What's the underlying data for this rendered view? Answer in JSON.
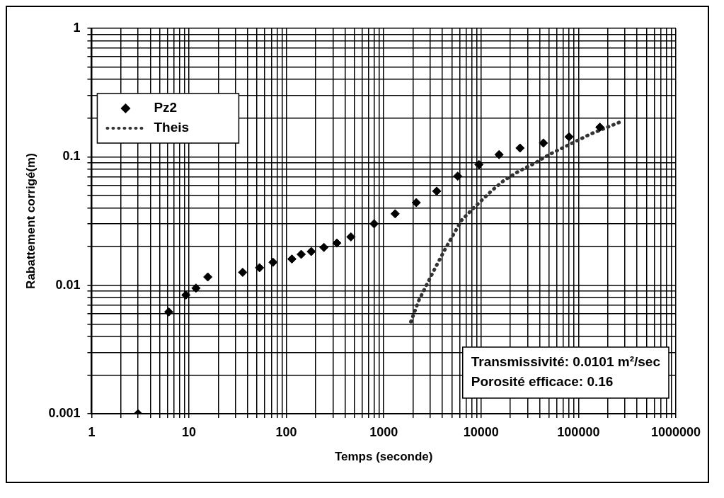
{
  "chart_data": {
    "type": "scatter",
    "xlabel": "Temps (seconde)",
    "ylabel": "Rabattement corrigé(m)",
    "log": "xy",
    "xlim": [
      1,
      1000000
    ],
    "ylim": [
      0.001,
      1
    ],
    "xticks": [
      1,
      {
        "value": 2,
        "label": null
      },
      {
        "value": 3,
        "label": null
      },
      {
        "value": 4,
        "label": null
      },
      {
        "value": 5,
        "label": null
      },
      {
        "value": 6,
        "label": null
      },
      {
        "value": 7,
        "label": null
      },
      {
        "value": 8,
        "label": null
      },
      {
        "value": 9,
        "label": null
      },
      10,
      {
        "value": 20,
        "label": null
      },
      {
        "value": 30,
        "label": null
      },
      {
        "value": 40,
        "label": null
      },
      {
        "value": 50,
        "label": null
      },
      {
        "value": 60,
        "label": null
      },
      {
        "value": 70,
        "label": null
      },
      {
        "value": 80,
        "label": null
      },
      {
        "value": 90,
        "label": null
      },
      100,
      {
        "value": 200,
        "label": null
      },
      {
        "value": 300,
        "label": null
      },
      {
        "value": 400,
        "label": null
      },
      {
        "value": 500,
        "label": null
      },
      {
        "value": 600,
        "label": null
      },
      {
        "value": 700,
        "label": null
      },
      {
        "value": 800,
        "label": null
      },
      {
        "value": 900,
        "label": null
      },
      1000,
      {
        "value": 2000,
        "label": null
      },
      {
        "value": 3000,
        "label": null
      },
      {
        "value": 4000,
        "label": null
      },
      {
        "value": 5000,
        "label": null
      },
      {
        "value": 6000,
        "label": null
      },
      {
        "value": 7000,
        "label": null
      },
      {
        "value": 8000,
        "label": null
      },
      {
        "value": 9000,
        "label": null
      },
      10000,
      {
        "value": 20000,
        "label": null
      },
      {
        "value": 30000,
        "label": null
      },
      {
        "value": 40000,
        "label": null
      },
      {
        "value": 50000,
        "label": null
      },
      {
        "value": 60000,
        "label": null
      },
      {
        "value": 70000,
        "label": null
      },
      {
        "value": 80000,
        "label": null
      },
      {
        "value": 90000,
        "label": null
      },
      100000,
      {
        "value": 200000,
        "label": null
      },
      {
        "value": 300000,
        "label": null
      },
      {
        "value": 400000,
        "label": null
      },
      {
        "value": 500000,
        "label": null
      },
      {
        "value": 600000,
        "label": null
      },
      {
        "value": 700000,
        "label": null
      },
      {
        "value": 800000,
        "label": null
      },
      {
        "value": 900000,
        "label": null
      },
      1000000
    ],
    "yticks": [
      0.001,
      {
        "value": 0.002,
        "label": null
      },
      {
        "value": 0.003,
        "label": null
      },
      {
        "value": 0.004,
        "label": null
      },
      {
        "value": 0.005,
        "label": null
      },
      {
        "value": 0.006,
        "label": null
      },
      {
        "value": 0.007,
        "label": null
      },
      {
        "value": 0.008,
        "label": null
      },
      {
        "value": 0.009,
        "label": null
      },
      0.01,
      {
        "value": 0.02,
        "label": null
      },
      {
        "value": 0.03,
        "label": null
      },
      {
        "value": 0.04,
        "label": null
      },
      {
        "value": 0.05,
        "label": null
      },
      {
        "value": 0.06,
        "label": null
      },
      {
        "value": 0.07,
        "label": null
      },
      {
        "value": 0.08,
        "label": null
      },
      {
        "value": 0.09,
        "label": null
      },
      0.1,
      {
        "value": 0.2,
        "label": null
      },
      {
        "value": 0.3,
        "label": null
      },
      {
        "value": 0.4,
        "label": null
      },
      {
        "value": 0.5,
        "label": null
      },
      {
        "value": 0.6,
        "label": null
      },
      {
        "value": 0.7,
        "label": null
      },
      {
        "value": 0.8,
        "label": null
      },
      {
        "value": 0.9,
        "label": null
      },
      1
    ],
    "grid": true,
    "legend": "top left",
    "series": [
      {
        "name": "Pz2",
        "marker": "diamond",
        "color": "#000000",
        "x": [
          3,
          6.2,
          9.3,
          11.8,
          15.6,
          35.6,
          53,
          73,
          114,
          142,
          180,
          243,
          330,
          460,
          796,
          1310,
          2160,
          3500,
          5750,
          9500,
          15300,
          25100,
          43600,
          80000,
          166000
        ],
        "values": [
          0.001,
          0.0062,
          0.0084,
          0.0095,
          0.0116,
          0.0126,
          0.0137,
          0.0151,
          0.016,
          0.0174,
          0.0183,
          0.0197,
          0.0213,
          0.0238,
          0.0301,
          0.036,
          0.044,
          0.054,
          0.0707,
          0.087,
          0.104,
          0.117,
          0.128,
          0.143,
          0.17
        ]
      },
      {
        "name": "Theis",
        "type": "line",
        "line_style": "dotted",
        "color": "#333333",
        "x": [
          1900,
          2290,
          3200,
          4220,
          5300,
          6330,
          8400,
          12900,
          17400,
          24300,
          35000,
          50000,
          132000,
          284000
        ],
        "values": [
          0.0052,
          0.0076,
          0.0126,
          0.0188,
          0.0255,
          0.0322,
          0.04,
          0.0546,
          0.066,
          0.077,
          0.0886,
          0.104,
          0.15,
          0.19
        ]
      }
    ],
    "annotations": [
      "Transmissivité: 0.0101 m²/sec",
      "Porosité efficace: 0.16"
    ]
  }
}
